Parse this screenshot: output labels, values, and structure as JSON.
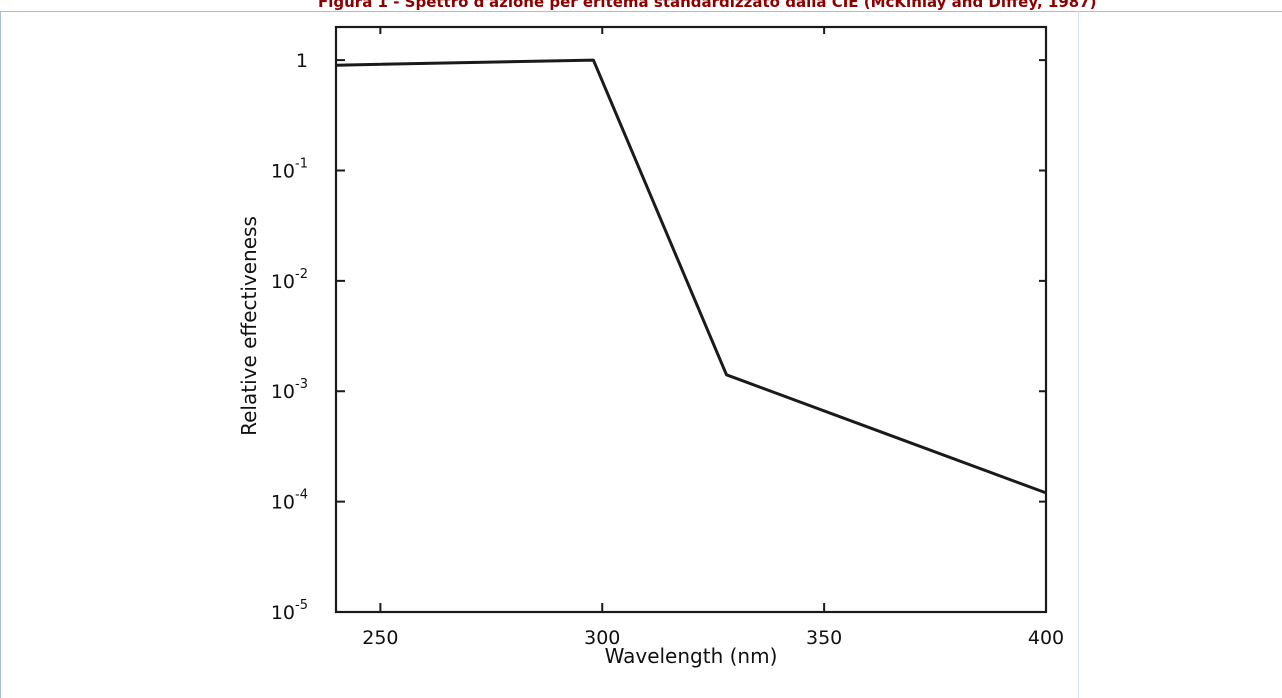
{
  "caption": "Figura 1 - Spettro d'azione per eritema standardizzato dalla CIE (McKinlay and Diffey, 1987)",
  "chart_data": {
    "type": "line",
    "xlabel": "Wavelength (nm)",
    "ylabel": "Relative effectiveness",
    "xlim": [
      240,
      400
    ],
    "ylim_exponent": [
      -5,
      0.3
    ],
    "yscale": "log",
    "x_ticks": [
      250,
      300,
      350,
      400
    ],
    "x_tick_labels": [
      "250",
      "300",
      "350",
      "400"
    ],
    "y_ticks": [
      0,
      -1,
      -2,
      -3,
      -4,
      -5
    ],
    "y_tick_labels": [
      {
        "base": "1",
        "exp": ""
      },
      {
        "base": "10",
        "exp": "-1"
      },
      {
        "base": "10",
        "exp": "-2"
      },
      {
        "base": "10",
        "exp": "-3"
      },
      {
        "base": "10",
        "exp": "-4"
      },
      {
        "base": "10",
        "exp": "-5"
      }
    ],
    "grid": false,
    "series": [
      {
        "x": [
          240,
          298,
          328,
          400
        ],
        "y": [
          0.9,
          1.0,
          0.00141,
          0.00012
        ]
      }
    ]
  }
}
